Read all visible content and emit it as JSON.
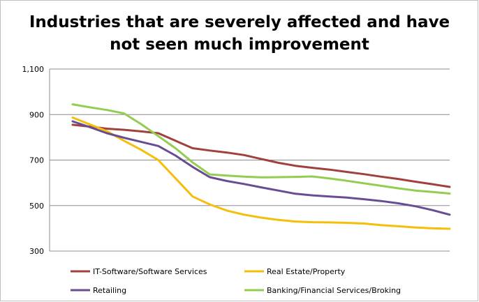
{
  "chart_data": {
    "type": "line",
    "title": "Industries that are severely affected and have\nnot seen much improvement",
    "xlabel": "",
    "ylabel": "",
    "ylim": [
      300,
      1100
    ],
    "yticks": [
      "300",
      "500",
      "700",
      "900",
      "1,100"
    ],
    "ytick_values": [
      300,
      500,
      700,
      900,
      1100
    ],
    "x": [
      1,
      2,
      3,
      4,
      5,
      6,
      7,
      8,
      9,
      10,
      11,
      12,
      13,
      14,
      15,
      16,
      17,
      18,
      19,
      20,
      21,
      22,
      23
    ],
    "grid": "horizontal",
    "legend_position": "bottom",
    "series": [
      {
        "name": "IT-Software/Software Services",
        "color": "#A0413E",
        "values": [
          855,
          847,
          838,
          833,
          826,
          818,
          785,
          752,
          742,
          733,
          722,
          705,
          688,
          675,
          666,
          658,
          648,
          638,
          627,
          617,
          605,
          594,
          582
        ]
      },
      {
        "name": "Real Estate/Property",
        "color": "#F5BE0A",
        "values": [
          887,
          857,
          827,
          785,
          745,
          700,
          620,
          540,
          505,
          478,
          460,
          447,
          437,
          430,
          427,
          426,
          424,
          421,
          414,
          409,
          404,
          400,
          398
        ]
      },
      {
        "name": "Retailing",
        "color": "#6A4C93",
        "values": [
          870,
          845,
          818,
          798,
          780,
          762,
          720,
          670,
          625,
          608,
          595,
          580,
          566,
          552,
          545,
          540,
          535,
          528,
          520,
          510,
          497,
          480,
          460
        ]
      },
      {
        "name": "Banking/Financial Services/Broking",
        "color": "#92CD52",
        "values": [
          945,
          932,
          920,
          905,
          858,
          805,
          752,
          690,
          637,
          632,
          627,
          624,
          625,
          626,
          628,
          619,
          609,
          598,
          587,
          576,
          566,
          560,
          553
        ]
      }
    ]
  }
}
